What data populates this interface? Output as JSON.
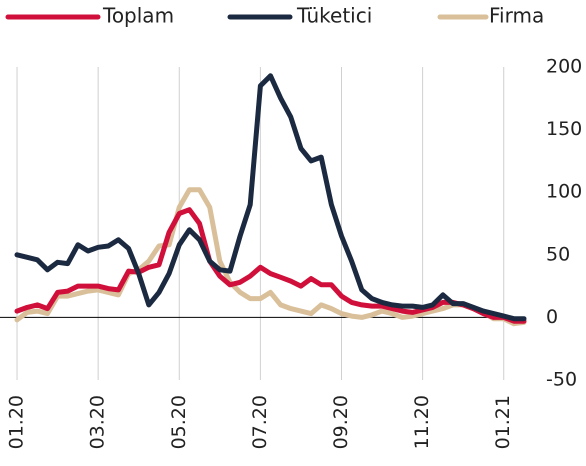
{
  "chart_data": {
    "type": "line",
    "x": [
      0,
      0.25,
      0.5,
      0.75,
      1,
      1.25,
      1.5,
      1.75,
      2,
      2.25,
      2.5,
      2.75,
      3,
      3.25,
      3.5,
      3.75,
      4,
      4.25,
      4.5,
      4.75,
      5,
      5.25,
      5.5,
      5.75,
      6,
      6.25,
      6.5,
      6.75,
      7,
      7.25,
      7.5,
      7.75,
      8,
      8.25,
      8.5,
      8.75,
      9,
      9.25,
      9.5,
      9.75,
      10,
      10.25,
      10.5,
      10.75,
      11,
      11.25,
      11.5,
      11.75,
      12,
      12.25,
      12.5
    ],
    "series": [
      {
        "name": "Toplam",
        "color": "#d0103a",
        "values": [
          5,
          8,
          10,
          7,
          20,
          21,
          25,
          25,
          25,
          23,
          22,
          37,
          36,
          40,
          42,
          68,
          83,
          86,
          75,
          45,
          33,
          26,
          28,
          33,
          40,
          35,
          32,
          29,
          25,
          31,
          26,
          26,
          17,
          12,
          10,
          9,
          9,
          7,
          5,
          4,
          6,
          8,
          12,
          12,
          10,
          7,
          3,
          0,
          0,
          -3,
          -3
        ]
      },
      {
        "name": "Tüketici",
        "color": "#1b2a41",
        "values": [
          50,
          48,
          46,
          38,
          44,
          43,
          58,
          53,
          56,
          57,
          62,
          55,
          35,
          10,
          20,
          35,
          58,
          70,
          62,
          45,
          38,
          37,
          65,
          90,
          185,
          193,
          175,
          160,
          135,
          125,
          128,
          90,
          65,
          45,
          22,
          15,
          12,
          10,
          9,
          9,
          8,
          10,
          18,
          11,
          11,
          8,
          5,
          3,
          1,
          -1,
          -1
        ]
      },
      {
        "name": "Firma",
        "color": "#d9c09a",
        "values": [
          -2,
          4,
          5,
          3,
          17,
          17,
          19,
          21,
          22,
          20,
          18,
          35,
          38,
          45,
          57,
          58,
          88,
          102,
          102,
          88,
          45,
          28,
          20,
          15,
          15,
          20,
          10,
          7,
          5,
          3,
          10,
          7,
          3,
          1,
          0,
          2,
          5,
          3,
          0,
          1,
          3,
          5,
          7,
          10,
          10,
          7,
          4,
          -1,
          -1,
          -5,
          -4
        ]
      }
    ],
    "xlim": [
      -0.42,
      12.5
    ],
    "xticks": [
      {
        "value": 0,
        "label": "01.20"
      },
      {
        "value": 2,
        "label": "03.20"
      },
      {
        "value": 4,
        "label": "05.20"
      },
      {
        "value": 6,
        "label": "07.20"
      },
      {
        "value": 8,
        "label": "09.20"
      },
      {
        "value": 10,
        "label": "11.20"
      },
      {
        "value": 12,
        "label": "01.21"
      }
    ],
    "ylim": [
      -50,
      200
    ],
    "yticks": [
      -50,
      0,
      50,
      100,
      150,
      200
    ],
    "grid": true,
    "legend": "top"
  }
}
